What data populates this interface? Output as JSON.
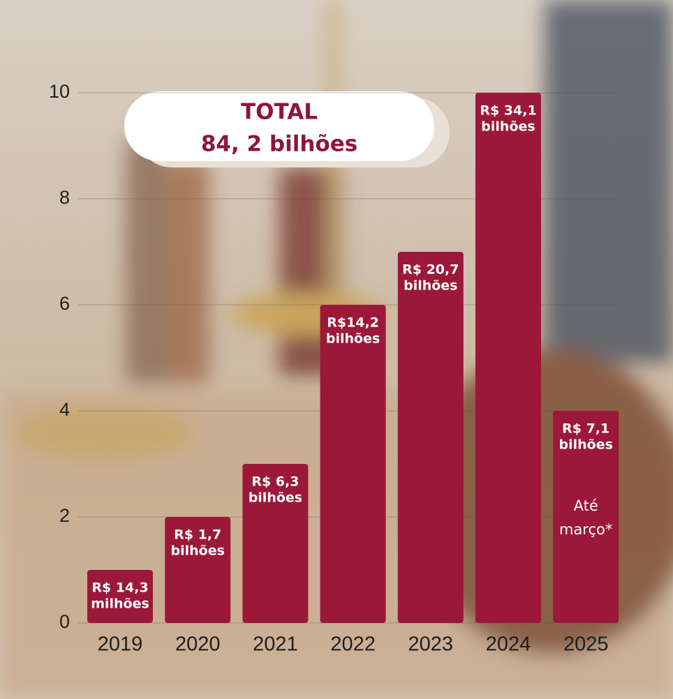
{
  "chart_data": {
    "type": "bar",
    "categories": [
      "2019",
      "2020",
      "2021",
      "2022",
      "2023",
      "2024",
      "2025"
    ],
    "values": [
      1,
      2,
      3,
      6,
      7,
      10,
      4
    ],
    "bar_labels": [
      [
        "R$ 14,3",
        "milhões"
      ],
      [
        "R$ 1,7",
        "bilhões"
      ],
      [
        "R$ 6,3",
        "bilhões"
      ],
      [
        "R$14,2",
        "bilhões"
      ],
      [
        "R$ 20,7",
        "bilhões"
      ],
      [
        "R$ 34,1",
        "bilhões"
      ],
      [
        "R$ 7,1",
        "bilhões"
      ]
    ],
    "note": [
      "Até",
      "março*"
    ],
    "total": [
      "TOTAL",
      "84, 2 bilhões"
    ],
    "color": "#9b1838",
    "ylim": [
      0,
      10
    ],
    "yticks": [
      0,
      2,
      4,
      6,
      8,
      10
    ],
    "grid": true
  }
}
